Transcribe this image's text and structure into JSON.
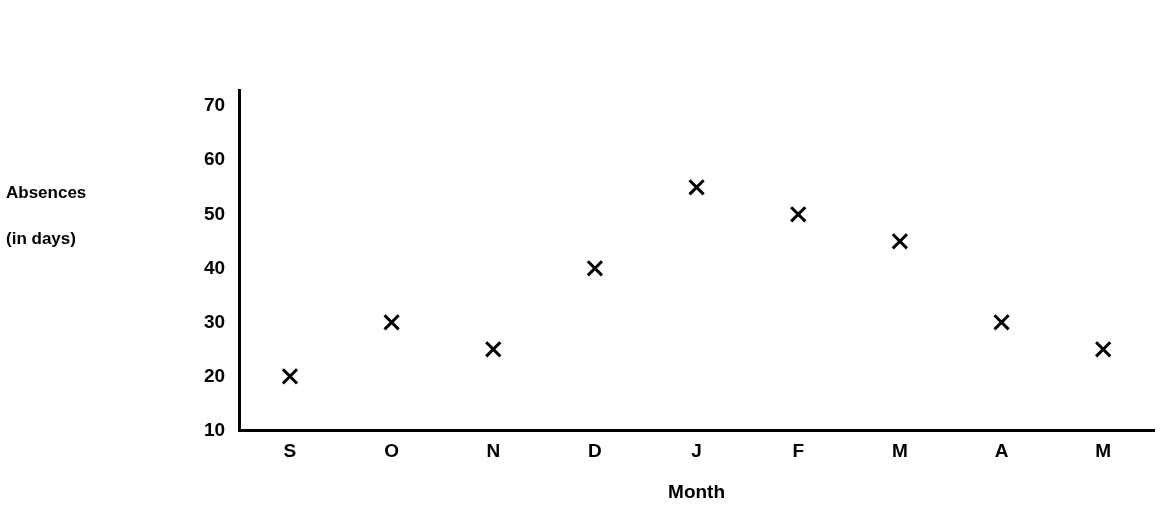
{
  "chart_data": {
    "type": "scatter",
    "xlabel": "Month",
    "ylabel": "Absences (in days)",
    "categories": [
      "S",
      "O",
      "N",
      "D",
      "J",
      "F",
      "M",
      "A",
      "M"
    ],
    "series": [
      {
        "color": "#000000",
        "values": [
          20,
          30,
          25,
          40,
          55,
          50,
          45,
          30,
          25
        ]
      }
    ],
    "ylim": [
      10,
      73
    ],
    "yticks": [
      10,
      20,
      30,
      40,
      50,
      60,
      70
    ],
    "grid": false,
    "legend": false,
    "marker": "cross"
  }
}
